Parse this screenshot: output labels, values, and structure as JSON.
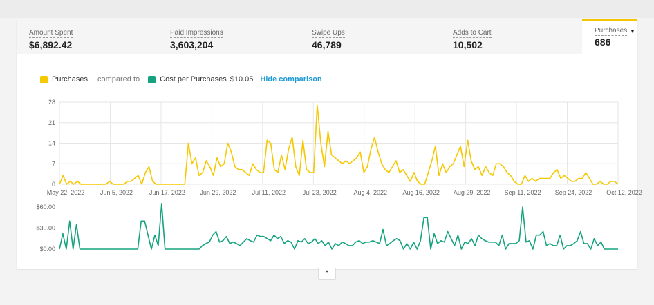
{
  "metrics": [
    {
      "label": "Amount Spent",
      "value": "$6,892.42"
    },
    {
      "label": "Paid Impressions",
      "value": "3,603,204"
    },
    {
      "label": "Swipe Ups",
      "value": "46,789"
    },
    {
      "label": "Adds to Cart",
      "value": "10,502"
    },
    {
      "label": "Purchases",
      "value": "686",
      "active": true
    }
  ],
  "legend": {
    "primary": "Purchases",
    "compared": "compared to",
    "secondary": "Cost per Purchases",
    "secondary_value": "$10.05",
    "hide": "Hide comparison"
  },
  "colors": {
    "purchases": "#f5c800",
    "cost": "#15a37f",
    "grid": "#e6e6e6"
  },
  "icons": {
    "dropdown": "caret-down-icon",
    "collapse": "chevron-up-icon"
  },
  "chart_data": [
    {
      "type": "line",
      "series": [
        {
          "name": "Purchases",
          "values": [
            0,
            3,
            0,
            1,
            0,
            1,
            0,
            0,
            0,
            0,
            0,
            0,
            0,
            0,
            1,
            0,
            0,
            0,
            0,
            1,
            1,
            2,
            3,
            0,
            4,
            6,
            1,
            0,
            0,
            0,
            0,
            0,
            0,
            0,
            0,
            0,
            14,
            7,
            9,
            3,
            4,
            8,
            6,
            3,
            9,
            6,
            7,
            14,
            11,
            6,
            5,
            5,
            4,
            3,
            7,
            5,
            4,
            4,
            15,
            14,
            5,
            4,
            10,
            5,
            12,
            16,
            6,
            3,
            15,
            5,
            4,
            4,
            27,
            14,
            6,
            18,
            10,
            9,
            8,
            7,
            8,
            7,
            8,
            9,
            11,
            4,
            6,
            12,
            16,
            11,
            7,
            5,
            4,
            6,
            8,
            4,
            5,
            3,
            1,
            4,
            1,
            0,
            0,
            4,
            8,
            13,
            3,
            7,
            4,
            6,
            7,
            10,
            13,
            6,
            15,
            8,
            5,
            6,
            3,
            6,
            4,
            3,
            7,
            7,
            6,
            4,
            3,
            1,
            0,
            0,
            3,
            1,
            2,
            1,
            2,
            2,
            2,
            2,
            4,
            5,
            2,
            3,
            2,
            1,
            1,
            2,
            2,
            4,
            2,
            0,
            0,
            1,
            0,
            0,
            1,
            1,
            0
          ]
        }
      ],
      "x_ticks": [
        "May 22, 2022",
        "Jun 5, 2022",
        "Jun 17, 2022",
        "Jun 29, 2022",
        "Jul 11, 2022",
        "Jul 23, 2022",
        "Aug 4, 2022",
        "Aug 16, 2022",
        "Aug 29, 2022",
        "Sep 11, 2022",
        "Sep 24, 2022",
        "Oct 12, 2022"
      ],
      "y_ticks": [
        "28",
        "21",
        "14",
        "7",
        "0"
      ],
      "ylim": [
        0,
        28
      ],
      "grid": true
    },
    {
      "type": "line",
      "series": [
        {
          "name": "Cost per Purchases",
          "values": [
            0,
            22,
            0,
            40,
            0,
            35,
            0,
            0,
            0,
            0,
            0,
            0,
            0,
            0,
            0,
            0,
            0,
            0,
            0,
            0,
            0,
            0,
            0,
            0,
            40,
            40,
            20,
            0,
            20,
            5,
            65,
            0,
            0,
            0,
            0,
            0,
            0,
            0,
            0,
            0,
            0,
            0,
            5,
            8,
            10,
            20,
            25,
            10,
            12,
            18,
            8,
            10,
            8,
            5,
            10,
            15,
            12,
            10,
            20,
            18,
            18,
            15,
            12,
            20,
            15,
            18,
            8,
            12,
            10,
            0,
            12,
            10,
            15,
            8,
            10,
            15,
            8,
            12,
            5,
            10,
            0,
            8,
            5,
            10,
            8,
            5,
            5,
            10,
            12,
            8,
            10,
            10,
            12,
            10,
            8,
            28,
            5,
            8,
            12,
            15,
            12,
            0,
            8,
            0,
            10,
            0,
            12,
            45,
            45,
            0,
            22,
            8,
            12,
            10,
            25,
            15,
            5,
            20,
            0,
            10,
            8,
            15,
            5,
            20,
            15,
            12,
            10,
            10,
            10,
            5,
            20,
            0,
            8,
            8,
            8,
            12,
            60,
            10,
            12,
            0,
            20,
            20,
            25,
            5,
            8,
            5,
            5,
            20,
            0,
            5,
            5,
            8,
            12,
            25,
            8,
            8,
            0,
            15,
            5,
            10,
            0,
            0,
            0,
            0,
            0
          ]
        }
      ],
      "y_ticks": [
        "$60.00",
        "$30.00",
        "$0.00"
      ],
      "ylim": [
        0,
        60
      ],
      "grid": false
    }
  ]
}
